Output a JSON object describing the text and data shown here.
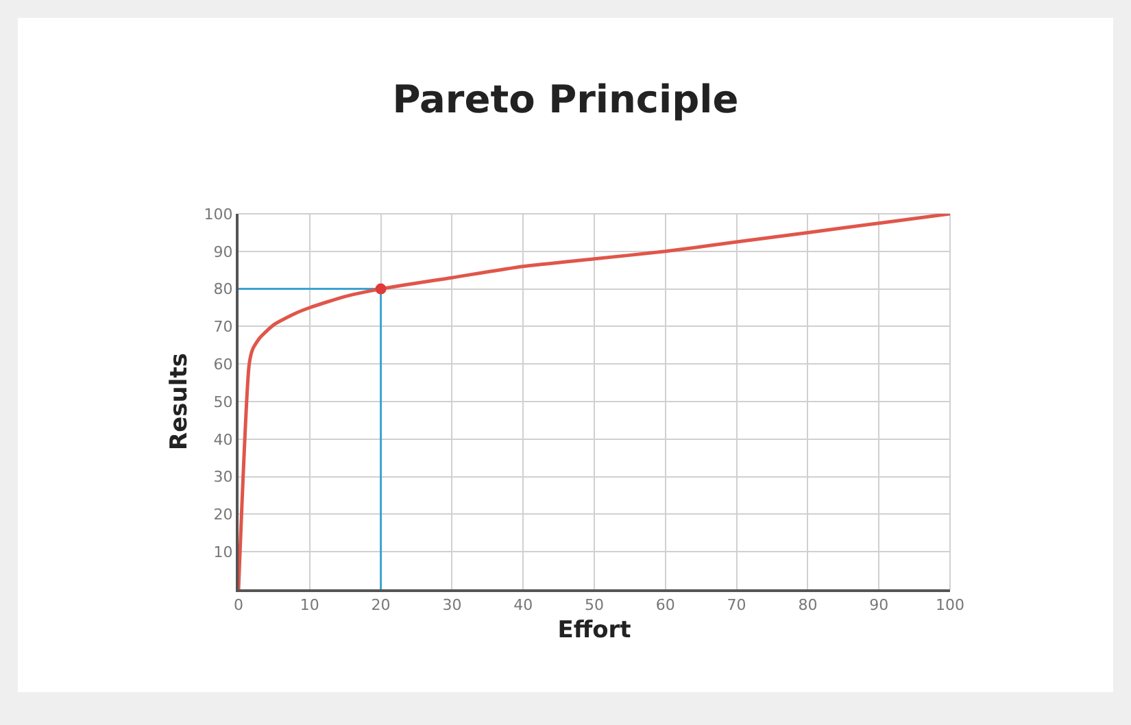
{
  "chart_data": {
    "type": "line",
    "title": "Pareto Principle",
    "xlabel": "Effort",
    "ylabel": "Results",
    "xlim": [
      0,
      100
    ],
    "ylim": [
      0,
      100
    ],
    "xticks": [
      0,
      10,
      20,
      30,
      40,
      50,
      60,
      70,
      80,
      90,
      100
    ],
    "yticks": [
      10,
      20,
      30,
      40,
      50,
      60,
      70,
      80,
      90,
      100
    ],
    "grid": true,
    "series": [
      {
        "color": "#e0564a",
        "marker": "none",
        "x": [
          0,
          1.5,
          2,
          3,
          5,
          8,
          10,
          15,
          20,
          30,
          40,
          50,
          60,
          70,
          80,
          90,
          100
        ],
        "values": [
          0,
          60,
          64,
          67,
          70.5,
          73.5,
          75,
          78,
          80,
          83,
          86,
          88,
          90,
          92.5,
          95,
          97.5,
          100
        ]
      },
      {
        "type": "scatter",
        "color": "#e0393a",
        "marker": "circle",
        "x": [
          20
        ],
        "values": [
          80
        ]
      }
    ],
    "ref_lines": [
      {
        "axis": "x",
        "value": 20,
        "color": "#3aa3d0"
      },
      {
        "axis": "y",
        "value": 80,
        "color": "#3aa3d0"
      }
    ]
  }
}
